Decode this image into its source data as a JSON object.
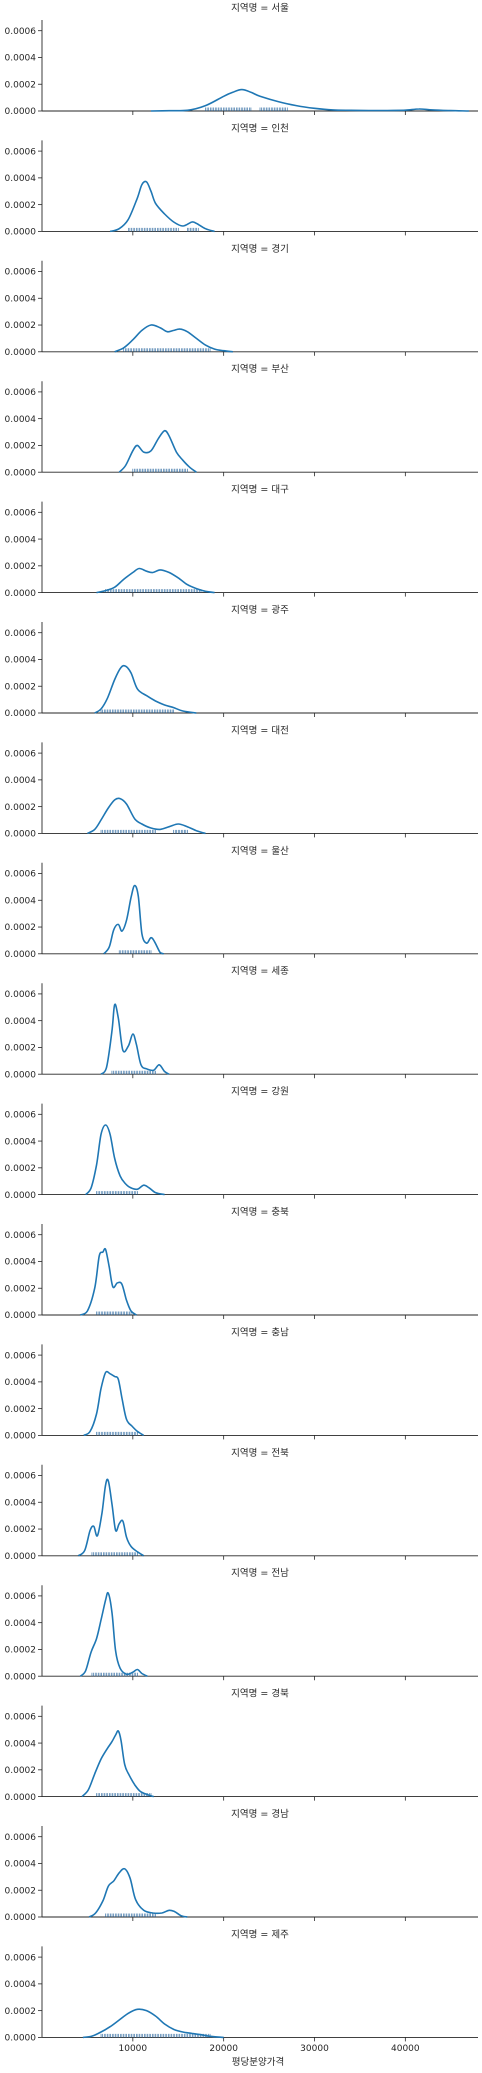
{
  "chart_data": {
    "type": "kde-facet",
    "facet_label_prefix": "지역명 = ",
    "xlabel": "평당분양가격",
    "x_ticks": [
      10000,
      20000,
      30000,
      40000
    ],
    "x_range": [
      0,
      48000
    ],
    "y_ticks": [
      "0.0000",
      "0.0002",
      "0.0004",
      "0.0006"
    ],
    "y_range": [
      0,
      0.00068
    ],
    "line_color": "#1f77b4",
    "rug_color": "#1f5f99",
    "panels": [
      {
        "region": "서울",
        "curve": [
          [
            12000,
            0
          ],
          [
            14000,
            2e-06
          ],
          [
            16000,
            5e-06
          ],
          [
            18000,
            4e-05
          ],
          [
            20000,
            0.00011
          ],
          [
            21000,
            0.00014
          ],
          [
            22000,
            0.00016
          ],
          [
            23000,
            0.00014
          ],
          [
            24000,
            0.00011
          ],
          [
            26000,
            7e-05
          ],
          [
            28000,
            4e-05
          ],
          [
            30000,
            2e-05
          ],
          [
            32000,
            8e-06
          ],
          [
            34000,
            5e-06
          ],
          [
            36000,
            4e-06
          ],
          [
            38000,
            4e-06
          ],
          [
            40000,
            6e-06
          ],
          [
            41500,
            1.5e-05
          ],
          [
            43000,
            8e-06
          ],
          [
            45000,
            3e-06
          ],
          [
            47000,
            0
          ]
        ],
        "rug": [
          [
            18000,
            23000
          ],
          [
            24000,
            27000
          ]
        ]
      },
      {
        "region": "인천",
        "curve": [
          [
            7500,
            0
          ],
          [
            8500,
            2e-05
          ],
          [
            9500,
            9e-05
          ],
          [
            10500,
            0.00025
          ],
          [
            11000,
            0.00035
          ],
          [
            11500,
            0.00037
          ],
          [
            12000,
            0.0003
          ],
          [
            12500,
            0.00021
          ],
          [
            13500,
            0.00013
          ],
          [
            14500,
            7e-05
          ],
          [
            15500,
            4e-05
          ],
          [
            16500,
            7e-05
          ],
          [
            17000,
            6e-05
          ],
          [
            18000,
            2e-05
          ],
          [
            19000,
            0
          ]
        ],
        "rug": [
          [
            9500,
            15000
          ],
          [
            16000,
            17200
          ]
        ]
      },
      {
        "region": "경기",
        "curve": [
          [
            8000,
            0
          ],
          [
            9000,
            3e-05
          ],
          [
            10000,
            9e-05
          ],
          [
            11000,
            0.00016
          ],
          [
            12000,
            0.0002
          ],
          [
            13000,
            0.00018
          ],
          [
            13800,
            0.00015
          ],
          [
            14500,
            0.00016
          ],
          [
            15200,
            0.00017
          ],
          [
            16000,
            0.00015
          ],
          [
            17000,
            0.0001
          ],
          [
            18000,
            5e-05
          ],
          [
            19000,
            2e-05
          ],
          [
            20000,
            8e-06
          ],
          [
            21000,
            0
          ]
        ],
        "rug": [
          [
            9000,
            18500
          ]
        ]
      },
      {
        "region": "부산",
        "curve": [
          [
            8500,
            0
          ],
          [
            9200,
            5e-05
          ],
          [
            10000,
            0.00016
          ],
          [
            10500,
            0.0002
          ],
          [
            11200,
            0.00015
          ],
          [
            12000,
            0.00016
          ],
          [
            12800,
            0.00025
          ],
          [
            13500,
            0.00031
          ],
          [
            14000,
            0.00027
          ],
          [
            14800,
            0.00015
          ],
          [
            15500,
            9e-05
          ],
          [
            16200,
            4e-05
          ],
          [
            17000,
            0
          ]
        ],
        "rug": [
          [
            10000,
            16000
          ]
        ]
      },
      {
        "region": "대구",
        "curve": [
          [
            6000,
            0
          ],
          [
            7000,
            1.5e-05
          ],
          [
            8000,
            4e-05
          ],
          [
            9000,
            0.0001
          ],
          [
            10000,
            0.00015
          ],
          [
            10700,
            0.00018
          ],
          [
            11500,
            0.00016
          ],
          [
            12200,
            0.00015
          ],
          [
            13000,
            0.00017
          ],
          [
            14000,
            0.00015
          ],
          [
            15000,
            0.00011
          ],
          [
            16000,
            6e-05
          ],
          [
            17000,
            3e-05
          ],
          [
            18000,
            1e-05
          ],
          [
            19000,
            0
          ]
        ],
        "rug": [
          [
            7000,
            17500
          ]
        ]
      },
      {
        "region": "광주",
        "curve": [
          [
            5800,
            0
          ],
          [
            6500,
            3e-05
          ],
          [
            7200,
            0.00011
          ],
          [
            8000,
            0.00025
          ],
          [
            8700,
            0.00034
          ],
          [
            9200,
            0.00035
          ],
          [
            9800,
            0.0003
          ],
          [
            10500,
            0.00018
          ],
          [
            11500,
            0.00013
          ],
          [
            12500,
            9e-05
          ],
          [
            13500,
            6e-05
          ],
          [
            14500,
            4e-05
          ],
          [
            15500,
            1.5e-05
          ],
          [
            17000,
            0
          ]
        ],
        "rug": [
          [
            6500,
            14500
          ]
        ]
      },
      {
        "region": "대전",
        "curve": [
          [
            5000,
            0
          ],
          [
            5800,
            3e-05
          ],
          [
            6500,
            0.0001
          ],
          [
            7300,
            0.00019
          ],
          [
            8000,
            0.00025
          ],
          [
            8600,
            0.00026
          ],
          [
            9300,
            0.00022
          ],
          [
            10200,
            0.00011
          ],
          [
            11000,
            7e-05
          ],
          [
            12000,
            4e-05
          ],
          [
            13000,
            3e-05
          ],
          [
            14000,
            5e-05
          ],
          [
            15000,
            7e-05
          ],
          [
            16000,
            5e-05
          ],
          [
            17000,
            2e-05
          ],
          [
            18000,
            0
          ]
        ],
        "rug": [
          [
            6500,
            12500
          ],
          [
            14500,
            16000
          ]
        ]
      },
      {
        "region": "울산",
        "curve": [
          [
            6800,
            0
          ],
          [
            7400,
            5e-05
          ],
          [
            7900,
            0.00018
          ],
          [
            8400,
            0.00022
          ],
          [
            8800,
            0.00017
          ],
          [
            9300,
            0.00025
          ],
          [
            9800,
            0.00042
          ],
          [
            10200,
            0.00051
          ],
          [
            10600,
            0.00043
          ],
          [
            11000,
            0.00015
          ],
          [
            11500,
            8e-05
          ],
          [
            12000,
            0.00012
          ],
          [
            12400,
            9e-05
          ],
          [
            13000,
            1e-05
          ],
          [
            13400,
            0
          ]
        ],
        "rug": [
          [
            8500,
            12000
          ]
        ]
      },
      {
        "region": "세종",
        "curve": [
          [
            6500,
            0
          ],
          [
            7100,
            5e-05
          ],
          [
            7700,
            0.00032
          ],
          [
            8000,
            0.00052
          ],
          [
            8400,
            0.00042
          ],
          [
            8900,
            0.00018
          ],
          [
            9500,
            0.00021
          ],
          [
            10000,
            0.0003
          ],
          [
            10400,
            0.00022
          ],
          [
            10900,
            7e-05
          ],
          [
            11500,
            4e-05
          ],
          [
            12300,
            3e-05
          ],
          [
            12900,
            7e-05
          ],
          [
            13500,
            2e-05
          ],
          [
            14000,
            0
          ]
        ],
        "rug": [
          [
            7700,
            12500
          ]
        ]
      },
      {
        "region": "강원",
        "curve": [
          [
            4800,
            0
          ],
          [
            5400,
            5e-05
          ],
          [
            6000,
            0.00022
          ],
          [
            6500,
            0.00045
          ],
          [
            7000,
            0.00052
          ],
          [
            7500,
            0.00045
          ],
          [
            8000,
            0.00027
          ],
          [
            8600,
            0.00014
          ],
          [
            9200,
            8e-05
          ],
          [
            9800,
            5e-05
          ],
          [
            10500,
            4e-05
          ],
          [
            11200,
            7e-05
          ],
          [
            11800,
            5e-05
          ],
          [
            12500,
            1.5e-05
          ],
          [
            13500,
            0
          ]
        ],
        "rug": [
          [
            6000,
            10500
          ]
        ]
      },
      {
        "region": "충북",
        "curve": [
          [
            4200,
            0
          ],
          [
            5000,
            3e-05
          ],
          [
            5800,
            0.0002
          ],
          [
            6300,
            0.00044
          ],
          [
            6700,
            0.00047
          ],
          [
            7000,
            0.00049
          ],
          [
            7400,
            0.00036
          ],
          [
            7800,
            0.00021
          ],
          [
            8300,
            0.00024
          ],
          [
            8800,
            0.00023
          ],
          [
            9300,
            0.00011
          ],
          [
            9800,
            3e-05
          ],
          [
            10400,
            0
          ]
        ],
        "rug": [
          [
            6000,
            9800
          ]
        ]
      },
      {
        "region": "충남",
        "curve": [
          [
            4600,
            0
          ],
          [
            5300,
            3e-05
          ],
          [
            6000,
            0.00016
          ],
          [
            6500,
            0.00035
          ],
          [
            7000,
            0.00047
          ],
          [
            7500,
            0.00046
          ],
          [
            8000,
            0.00044
          ],
          [
            8400,
            0.00042
          ],
          [
            8800,
            0.00028
          ],
          [
            9300,
            0.00012
          ],
          [
            9900,
            7e-05
          ],
          [
            10500,
            3e-05
          ],
          [
            11200,
            0
          ]
        ],
        "rug": [
          [
            6000,
            10500
          ]
        ]
      },
      {
        "region": "전북",
        "curve": [
          [
            4000,
            0
          ],
          [
            4700,
            4e-05
          ],
          [
            5300,
            0.00019
          ],
          [
            5700,
            0.00022
          ],
          [
            6100,
            0.00015
          ],
          [
            6600,
            0.00032
          ],
          [
            7000,
            0.00053
          ],
          [
            7300,
            0.00056
          ],
          [
            7700,
            0.00039
          ],
          [
            8100,
            0.00019
          ],
          [
            8500,
            0.00024
          ],
          [
            8900,
            0.00026
          ],
          [
            9300,
            0.00014
          ],
          [
            9800,
            7e-05
          ],
          [
            10500,
            3e-05
          ],
          [
            11200,
            0
          ]
        ],
        "rug": [
          [
            5500,
            10500
          ]
        ]
      },
      {
        "region": "전남",
        "curve": [
          [
            4200,
            0
          ],
          [
            4800,
            4e-05
          ],
          [
            5400,
            0.00018
          ],
          [
            6000,
            0.00028
          ],
          [
            6500,
            0.00042
          ],
          [
            7000,
            0.00057
          ],
          [
            7300,
            0.00062
          ],
          [
            7700,
            0.00048
          ],
          [
            8100,
            0.00019
          ],
          [
            8600,
            6e-05
          ],
          [
            9300,
            1.5e-05
          ],
          [
            10000,
            3e-05
          ],
          [
            10500,
            5e-05
          ],
          [
            11000,
            2e-05
          ],
          [
            11600,
            0
          ]
        ],
        "rug": [
          [
            5500,
            10500
          ]
        ]
      },
      {
        "region": "경북",
        "curve": [
          [
            4400,
            0
          ],
          [
            5100,
            5e-05
          ],
          [
            5800,
            0.00017
          ],
          [
            6500,
            0.00028
          ],
          [
            7200,
            0.00036
          ],
          [
            7700,
            0.00041
          ],
          [
            8100,
            0.00046
          ],
          [
            8400,
            0.00049
          ],
          [
            8700,
            0.00042
          ],
          [
            9100,
            0.00024
          ],
          [
            9600,
            0.00016
          ],
          [
            10200,
            9e-05
          ],
          [
            10800,
            4e-05
          ],
          [
            11600,
            1.5e-05
          ],
          [
            12300,
            0
          ]
        ],
        "rug": [
          [
            6000,
            12000
          ]
        ]
      },
      {
        "region": "경남",
        "curve": [
          [
            5200,
            0
          ],
          [
            5900,
            3e-05
          ],
          [
            6700,
            0.00012
          ],
          [
            7300,
            0.00023
          ],
          [
            7900,
            0.00027
          ],
          [
            8500,
            0.00033
          ],
          [
            9100,
            0.00036
          ],
          [
            9700,
            0.00029
          ],
          [
            10300,
            0.00013
          ],
          [
            11200,
            5e-05
          ],
          [
            12200,
            3e-05
          ],
          [
            13200,
            3e-05
          ],
          [
            14000,
            5e-05
          ],
          [
            14600,
            4e-05
          ],
          [
            15300,
            1e-05
          ],
          [
            16000,
            0
          ]
        ],
        "rug": [
          [
            7000,
            12500
          ]
        ]
      },
      {
        "region": "제주",
        "curve": [
          [
            4500,
            0
          ],
          [
            5500,
            1e-05
          ],
          [
            6500,
            4e-05
          ],
          [
            7500,
            8e-05
          ],
          [
            8500,
            0.00013
          ],
          [
            9500,
            0.00018
          ],
          [
            10500,
            0.00021
          ],
          [
            11500,
            0.0002
          ],
          [
            12500,
            0.00016
          ],
          [
            13500,
            0.0001
          ],
          [
            14500,
            6e-05
          ],
          [
            15500,
            4e-05
          ],
          [
            16500,
            3e-05
          ],
          [
            17500,
            2e-05
          ],
          [
            18500,
            8e-06
          ],
          [
            20000,
            0
          ]
        ],
        "rug": [
          [
            6500,
            18500
          ]
        ]
      }
    ]
  }
}
